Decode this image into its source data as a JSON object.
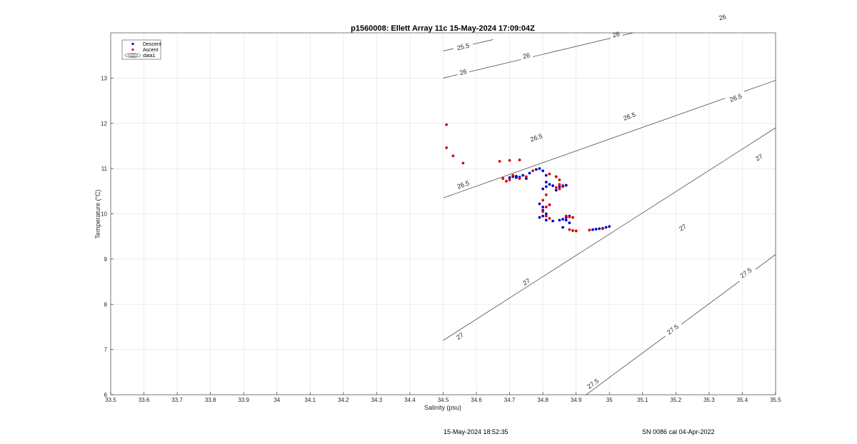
{
  "chart_data": {
    "type": "scatter",
    "title": "p1560008: Ellett Array 11c 15-May-2024 17:09:04Z",
    "xlabel": "Salinity (psu)",
    "ylabel": "Temperature (°C)",
    "xlim": [
      33.5,
      35.5
    ],
    "ylim": [
      6,
      14
    ],
    "xticks": [
      "33.5",
      "33.6",
      "33.7",
      "33.8",
      "33.9",
      "34",
      "34.1",
      "34.2",
      "34.3",
      "34.4",
      "34.5",
      "34.6",
      "34.7",
      "34.8",
      "34.9",
      "35",
      "35.1",
      "35.2",
      "35.3",
      "35.4",
      "35.5"
    ],
    "yticks": [
      "6",
      "7",
      "8",
      "9",
      "10",
      "11",
      "12",
      "13"
    ],
    "grid": true,
    "legend_position": "top-left",
    "legend": [
      "Descent",
      "Ascent",
      "data1"
    ],
    "series": [
      {
        "name": "Descent",
        "color": "#0000cc",
        "points": [
          [
            34.7,
            10.8
          ],
          [
            34.71,
            10.82
          ],
          [
            34.72,
            10.83
          ],
          [
            34.72,
            10.8
          ],
          [
            34.73,
            10.81
          ],
          [
            34.74,
            10.85
          ],
          [
            34.75,
            10.78
          ],
          [
            34.76,
            10.9
          ],
          [
            34.78,
            10.98
          ],
          [
            34.79,
            11.0
          ],
          [
            34.8,
            10.95
          ],
          [
            34.81,
            10.85
          ],
          [
            34.81,
            10.7
          ],
          [
            34.8,
            10.55
          ],
          [
            34.81,
            10.6
          ],
          [
            34.82,
            10.65
          ],
          [
            34.83,
            10.62
          ],
          [
            34.85,
            10.6
          ],
          [
            34.86,
            10.62
          ],
          [
            34.87,
            10.63
          ],
          [
            34.84,
            10.52
          ],
          [
            34.79,
            10.22
          ],
          [
            34.8,
            10.15
          ],
          [
            34.8,
            10.08
          ],
          [
            34.81,
            10.0
          ],
          [
            34.8,
            9.95
          ],
          [
            34.79,
            9.92
          ],
          [
            34.81,
            9.86
          ],
          [
            34.83,
            9.84
          ],
          [
            34.85,
            9.86
          ],
          [
            34.86,
            9.88
          ],
          [
            34.87,
            9.92
          ],
          [
            34.88,
            9.95
          ],
          [
            34.87,
            9.86
          ],
          [
            34.86,
            9.7
          ],
          [
            34.88,
            9.8
          ],
          [
            34.95,
            9.65
          ],
          [
            34.96,
            9.66
          ],
          [
            34.97,
            9.67
          ],
          [
            34.98,
            9.68
          ],
          [
            34.99,
            9.7
          ],
          [
            35.0,
            9.72
          ],
          [
            34.82,
            10.2
          ],
          [
            34.84,
            10.82
          ]
        ]
      },
      {
        "name": "Ascent",
        "color": "#dd0000",
        "points": [
          [
            34.51,
            11.97
          ],
          [
            34.51,
            11.46
          ],
          [
            34.53,
            11.28
          ],
          [
            34.56,
            11.12
          ],
          [
            34.67,
            11.16
          ],
          [
            34.7,
            11.18
          ],
          [
            34.73,
            11.19
          ],
          [
            34.68,
            10.78
          ],
          [
            34.69,
            10.72
          ],
          [
            34.7,
            10.75
          ],
          [
            34.71,
            10.85
          ],
          [
            34.73,
            10.78
          ],
          [
            34.75,
            10.82
          ],
          [
            34.77,
            10.95
          ],
          [
            34.82,
            10.88
          ],
          [
            34.84,
            10.82
          ],
          [
            34.85,
            10.75
          ],
          [
            34.85,
            10.65
          ],
          [
            34.86,
            10.6
          ],
          [
            34.84,
            10.58
          ],
          [
            34.85,
            10.55
          ],
          [
            34.81,
            10.42
          ],
          [
            34.8,
            10.3
          ],
          [
            34.82,
            10.2
          ],
          [
            34.81,
            10.15
          ],
          [
            34.8,
            10.05
          ],
          [
            34.81,
            9.95
          ],
          [
            34.82,
            9.9
          ],
          [
            34.87,
            9.95
          ],
          [
            34.88,
            9.93
          ],
          [
            34.89,
            9.92
          ],
          [
            34.88,
            9.65
          ],
          [
            34.89,
            9.63
          ],
          [
            34.9,
            9.62
          ],
          [
            34.94,
            9.64
          ],
          [
            34.98,
            9.67
          ]
        ]
      }
    ],
    "density_contours": [
      {
        "label": "25.5",
        "start": [
          34.5,
          13.6
        ],
        "end": [
          34.65,
          13.85
        ],
        "label_at": [
          34.56,
          13.7
        ]
      },
      {
        "label": "26",
        "start": [
          34.5,
          13.0
        ],
        "end": [
          35.5,
          14.75
        ],
        "label_at": [
          [
            34.56,
            13.14
          ],
          [
            34.75,
            13.5
          ],
          [
            35.02,
            13.97
          ],
          [
            35.34,
            14.35
          ]
        ]
      },
      {
        "label": "26.5",
        "start": [
          34.5,
          10.35
        ],
        "end": [
          35.5,
          12.95
        ],
        "label_at": [
          [
            34.56,
            10.65
          ],
          [
            34.78,
            11.69
          ],
          [
            35.06,
            12.16
          ],
          [
            35.38,
            12.57
          ]
        ]
      },
      {
        "label": "27",
        "start": [
          34.5,
          7.2
        ],
        "end": [
          35.5,
          11.9
        ],
        "label_at": [
          [
            34.55,
            7.3
          ],
          [
            34.75,
            8.5
          ],
          [
            35.22,
            9.7
          ],
          [
            35.45,
            11.25
          ]
        ]
      },
      {
        "label": "27.5",
        "start": [
          34.93,
          6.0
        ],
        "end": [
          35.5,
          9.1
        ],
        "label_at": [
          [
            34.95,
            6.25
          ],
          [
            35.19,
            7.45
          ],
          [
            35.41,
            8.7
          ]
        ]
      }
    ]
  },
  "footer": {
    "timestamp": "15-May-2024 18:52:35",
    "calibration": "SN 0086 cal 04-Apr-2022"
  }
}
